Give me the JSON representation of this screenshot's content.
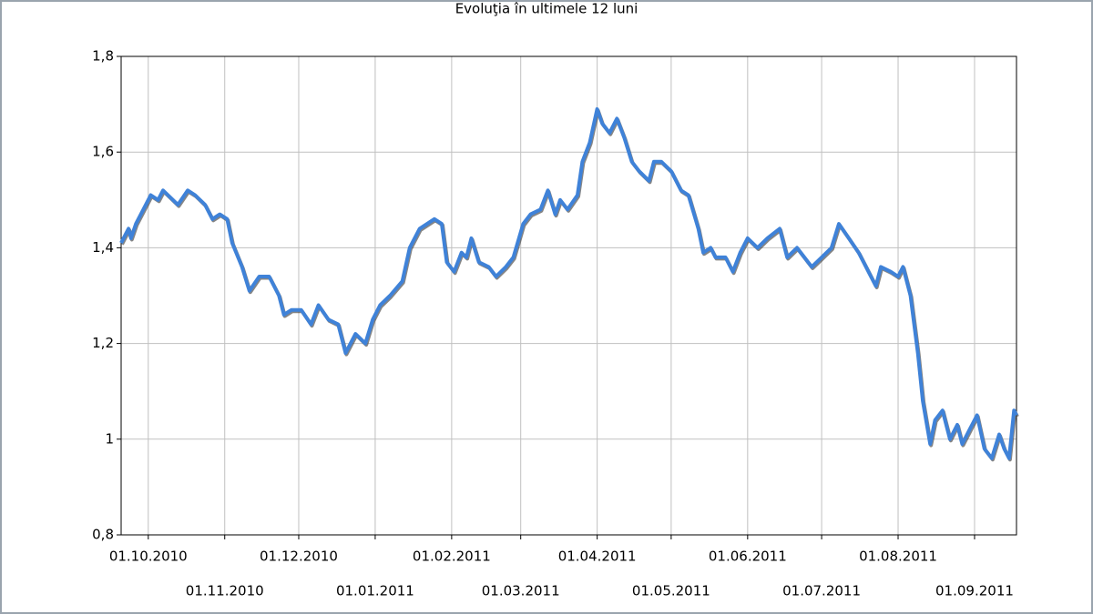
{
  "chart_data": {
    "type": "line",
    "title": "Evoluţia în ultimele 12 luni",
    "x": [
      "2010-09-20",
      "2010-09-23",
      "2010-09-24",
      "2010-09-26",
      "2010-09-30",
      "2010-10-02",
      "2010-10-05",
      "2010-10-07",
      "2010-10-11",
      "2010-10-13",
      "2010-10-17",
      "2010-10-20",
      "2010-10-24",
      "2010-10-27",
      "2010-10-30",
      "2010-11-02",
      "2010-11-04",
      "2010-11-08",
      "2010-11-11",
      "2010-11-15",
      "2010-11-19",
      "2010-11-23",
      "2010-11-25",
      "2010-11-28",
      "2010-12-02",
      "2010-12-06",
      "2010-12-09",
      "2010-12-13",
      "2010-12-17",
      "2010-12-20",
      "2010-12-24",
      "2010-12-28",
      "2010-12-31",
      "2011-01-03",
      "2011-01-07",
      "2011-01-12",
      "2011-01-15",
      "2011-01-19",
      "2011-01-25",
      "2011-01-28",
      "2011-01-30",
      "2011-02-02",
      "2011-02-05",
      "2011-02-07",
      "2011-02-09",
      "2011-02-12",
      "2011-02-16",
      "2011-02-19",
      "2011-02-23",
      "2011-02-26",
      "2011-03-02",
      "2011-03-05",
      "2011-03-09",
      "2011-03-12",
      "2011-03-15",
      "2011-03-17",
      "2011-03-20",
      "2011-03-24",
      "2011-03-26",
      "2011-03-29",
      "2011-04-01",
      "2011-04-03",
      "2011-04-06",
      "2011-04-09",
      "2011-04-12",
      "2011-04-15",
      "2011-04-18",
      "2011-04-22",
      "2011-04-24",
      "2011-04-27",
      "2011-05-01",
      "2011-05-05",
      "2011-05-08",
      "2011-05-12",
      "2011-05-14",
      "2011-05-17",
      "2011-05-19",
      "2011-05-23",
      "2011-05-26",
      "2011-05-29",
      "2011-06-01",
      "2011-06-05",
      "2011-06-09",
      "2011-06-14",
      "2011-06-17",
      "2011-06-21",
      "2011-06-24",
      "2011-06-27",
      "2011-07-01",
      "2011-07-05",
      "2011-07-08",
      "2011-07-12",
      "2011-07-16",
      "2011-07-20",
      "2011-07-23",
      "2011-07-25",
      "2011-07-29",
      "2011-08-01",
      "2011-08-03",
      "2011-08-06",
      "2011-08-09",
      "2011-08-11",
      "2011-08-14",
      "2011-08-16",
      "2011-08-19",
      "2011-08-22",
      "2011-08-25",
      "2011-08-27",
      "2011-08-30",
      "2011-09-02",
      "2011-09-05",
      "2011-09-08",
      "2011-09-11",
      "2011-09-13",
      "2011-09-15",
      "2011-09-17",
      "2011-09-18"
    ],
    "series": [
      {
        "color": "#3f82d8",
        "values": [
          1.41,
          1.44,
          1.42,
          1.45,
          1.49,
          1.51,
          1.5,
          1.52,
          1.5,
          1.49,
          1.52,
          1.51,
          1.49,
          1.46,
          1.47,
          1.46,
          1.41,
          1.36,
          1.31,
          1.34,
          1.34,
          1.3,
          1.26,
          1.27,
          1.27,
          1.24,
          1.28,
          1.25,
          1.24,
          1.18,
          1.22,
          1.2,
          1.25,
          1.28,
          1.3,
          1.33,
          1.4,
          1.44,
          1.46,
          1.45,
          1.37,
          1.35,
          1.39,
          1.38,
          1.42,
          1.37,
          1.36,
          1.34,
          1.36,
          1.38,
          1.45,
          1.47,
          1.48,
          1.52,
          1.47,
          1.5,
          1.48,
          1.51,
          1.58,
          1.62,
          1.69,
          1.66,
          1.64,
          1.67,
          1.63,
          1.58,
          1.56,
          1.54,
          1.58,
          1.58,
          1.56,
          1.52,
          1.51,
          1.44,
          1.39,
          1.4,
          1.38,
          1.38,
          1.35,
          1.39,
          1.42,
          1.4,
          1.42,
          1.44,
          1.38,
          1.4,
          1.38,
          1.36,
          1.38,
          1.4,
          1.45,
          1.42,
          1.39,
          1.35,
          1.32,
          1.36,
          1.35,
          1.34,
          1.36,
          1.3,
          1.18,
          1.08,
          0.99,
          1.04,
          1.06,
          1.0,
          1.03,
          0.99,
          1.02,
          1.05,
          0.98,
          0.96,
          1.01,
          0.98,
          0.96,
          1.06,
          1.05
        ]
      }
    ],
    "xlim": [
      "2010-09-20",
      "2011-09-18"
    ],
    "xticks": [
      {
        "value": "2010-10-01",
        "label": "01.10.2010"
      },
      {
        "value": "2010-11-01",
        "label": "01.11.2010"
      },
      {
        "value": "2010-12-01",
        "label": "01.12.2010"
      },
      {
        "value": "2011-01-01",
        "label": "01.01.2011"
      },
      {
        "value": "2011-02-01",
        "label": "01.02.2011"
      },
      {
        "value": "2011-03-01",
        "label": "01.03.2011"
      },
      {
        "value": "2011-04-01",
        "label": "01.04.2011"
      },
      {
        "value": "2011-05-01",
        "label": "01.05.2011"
      },
      {
        "value": "2011-06-01",
        "label": "01.06.2011"
      },
      {
        "value": "2011-07-01",
        "label": "01.07.2011"
      },
      {
        "value": "2011-08-01",
        "label": "01.08.2011"
      },
      {
        "value": "2011-09-01",
        "label": "01.09.2011"
      }
    ],
    "ylim": [
      0.8,
      1.8
    ],
    "yticks": [
      {
        "value": 0.8,
        "label": "0,8"
      },
      1,
      {
        "value": 1.2,
        "label": "1,2"
      },
      {
        "value": 1.4,
        "label": "1,4"
      },
      {
        "value": 1.6,
        "label": "1,6"
      },
      {
        "value": 1.8,
        "label": "1,8"
      }
    ],
    "grid": true
  }
}
